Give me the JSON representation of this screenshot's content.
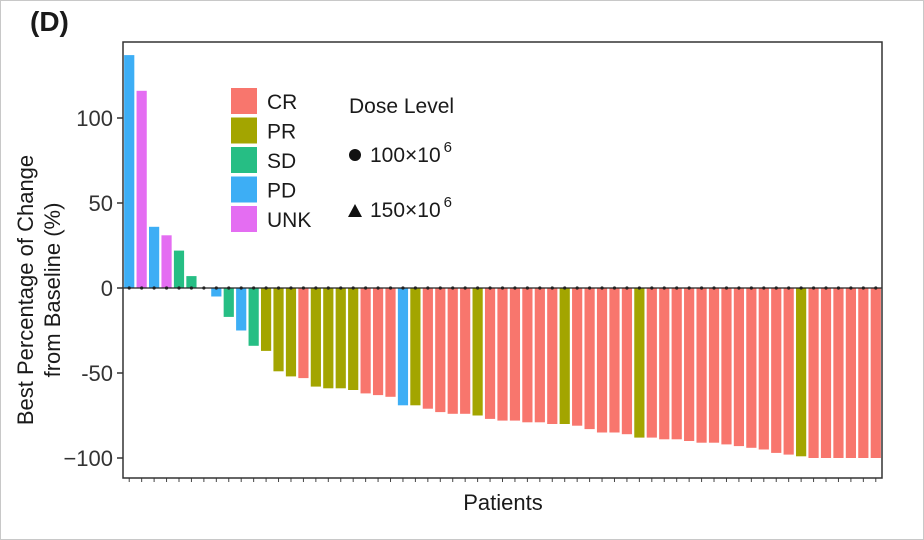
{
  "panel_label": "(D)",
  "chart_data": {
    "type": "bar",
    "title": "",
    "xlabel": "Patients",
    "ylabel_lines": [
      "Best Percentage of Change",
      "from Baseline (%)"
    ],
    "ylim": [
      -110,
      140
    ],
    "yticks": [
      100,
      50,
      0,
      -50,
      -100
    ],
    "ytick_labels": [
      "100",
      "50",
      "0",
      "-50",
      "−100"
    ],
    "grid": false,
    "legend_position": "top-left",
    "response_legend": [
      {
        "label": "CR",
        "color": "#F8766D"
      },
      {
        "label": "PR",
        "color": "#A3A500"
      },
      {
        "label": "SD",
        "color": "#26BE84"
      },
      {
        "label": "PD",
        "color": "#3DAEF5"
      },
      {
        "label": "UNK",
        "color": "#E46DF2"
      }
    ],
    "dose_legend": {
      "title": "Dose Level",
      "items": [
        {
          "marker": "circle",
          "base": "100×10",
          "exp": "6"
        },
        {
          "marker": "triangle",
          "base": "150×10",
          "exp": "6"
        }
      ]
    },
    "bars": [
      {
        "value": 137,
        "response": "PD"
      },
      {
        "value": 116,
        "response": "UNK"
      },
      {
        "value": 36,
        "response": "PD"
      },
      {
        "value": 31,
        "response": "UNK"
      },
      {
        "value": 22,
        "response": "SD"
      },
      {
        "value": 7,
        "response": "SD"
      },
      {
        "value": 0,
        "response": "CR"
      },
      {
        "value": -5,
        "response": "PD"
      },
      {
        "value": -17,
        "response": "SD"
      },
      {
        "value": -25,
        "response": "PD"
      },
      {
        "value": -34,
        "response": "SD"
      },
      {
        "value": -37,
        "response": "PR"
      },
      {
        "value": -49,
        "response": "PR"
      },
      {
        "value": -52,
        "response": "PR"
      },
      {
        "value": -53,
        "response": "CR"
      },
      {
        "value": -58,
        "response": "PR"
      },
      {
        "value": -59,
        "response": "PR"
      },
      {
        "value": -59,
        "response": "PR"
      },
      {
        "value": -60,
        "response": "PR"
      },
      {
        "value": -62,
        "response": "CR"
      },
      {
        "value": -63,
        "response": "CR"
      },
      {
        "value": -64,
        "response": "CR"
      },
      {
        "value": -69,
        "response": "PD"
      },
      {
        "value": -69,
        "response": "PR"
      },
      {
        "value": -71,
        "response": "CR"
      },
      {
        "value": -73,
        "response": "CR"
      },
      {
        "value": -74,
        "response": "CR"
      },
      {
        "value": -74,
        "response": "CR"
      },
      {
        "value": -75,
        "response": "PR"
      },
      {
        "value": -77,
        "response": "CR"
      },
      {
        "value": -78,
        "response": "CR"
      },
      {
        "value": -78,
        "response": "CR"
      },
      {
        "value": -79,
        "response": "CR"
      },
      {
        "value": -79,
        "response": "CR"
      },
      {
        "value": -80,
        "response": "CR"
      },
      {
        "value": -80,
        "response": "PR"
      },
      {
        "value": -81,
        "response": "CR"
      },
      {
        "value": -83,
        "response": "CR"
      },
      {
        "value": -85,
        "response": "CR"
      },
      {
        "value": -85,
        "response": "CR"
      },
      {
        "value": -86,
        "response": "CR"
      },
      {
        "value": -88,
        "response": "PR"
      },
      {
        "value": -88,
        "response": "CR"
      },
      {
        "value": -89,
        "response": "CR"
      },
      {
        "value": -89,
        "response": "CR"
      },
      {
        "value": -90,
        "response": "CR"
      },
      {
        "value": -91,
        "response": "CR"
      },
      {
        "value": -91,
        "response": "CR"
      },
      {
        "value": -92,
        "response": "CR"
      },
      {
        "value": -93,
        "response": "CR"
      },
      {
        "value": -94,
        "response": "CR"
      },
      {
        "value": -95,
        "response": "CR"
      },
      {
        "value": -97,
        "response": "CR"
      },
      {
        "value": -98,
        "response": "CR"
      },
      {
        "value": -99,
        "response": "PR"
      },
      {
        "value": -100,
        "response": "CR"
      },
      {
        "value": -100,
        "response": "CR"
      },
      {
        "value": -100,
        "response": "CR"
      },
      {
        "value": -100,
        "response": "CR"
      },
      {
        "value": -100,
        "response": "CR"
      },
      {
        "value": -100,
        "response": "CR"
      }
    ]
  }
}
